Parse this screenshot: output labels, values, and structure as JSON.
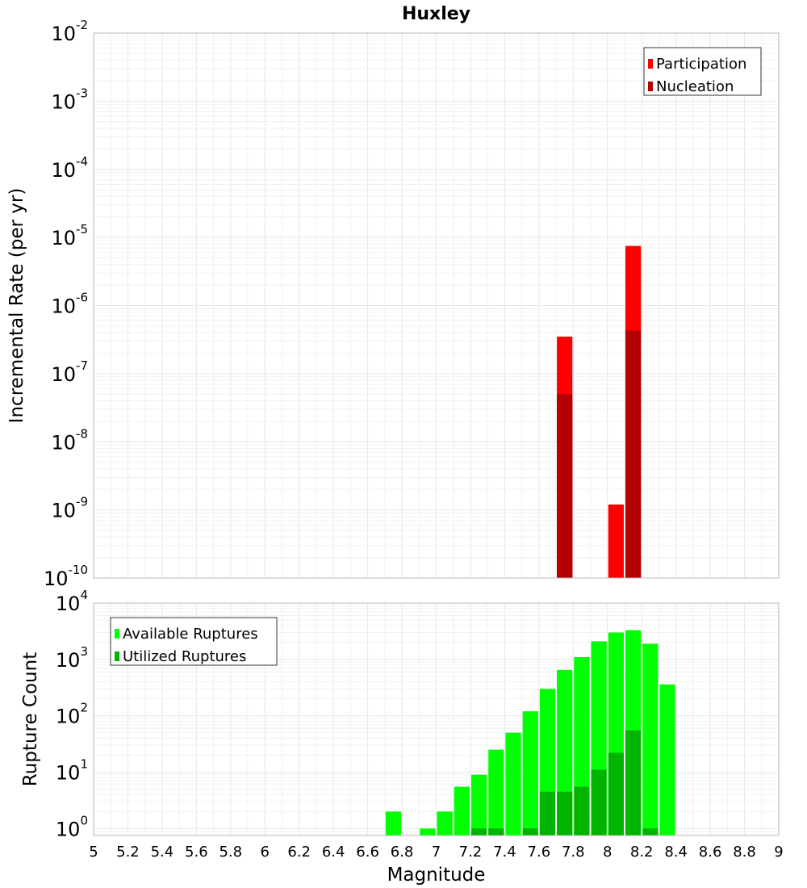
{
  "chart_data": [
    {
      "type": "bar",
      "title": "Huxley",
      "ylabel": "Incremental Rate (per yr)",
      "xlabel": "",
      "yscale": "log",
      "ylim": [
        1e-10,
        0.01
      ],
      "xlim": [
        5,
        9
      ],
      "bin_width": 0.1,
      "yticks": [
        {
          "base": "10",
          "exp": "-10"
        },
        {
          "base": "10",
          "exp": "-9"
        },
        {
          "base": "10",
          "exp": "-8"
        },
        {
          "base": "10",
          "exp": "-7"
        },
        {
          "base": "10",
          "exp": "-6"
        },
        {
          "base": "10",
          "exp": "-5"
        },
        {
          "base": "10",
          "exp": "-4"
        },
        {
          "base": "10",
          "exp": "-3"
        },
        {
          "base": "10",
          "exp": "-2"
        }
      ],
      "legend_position": "top-right",
      "series": [
        {
          "name": "Participation",
          "color": "#ff0000",
          "x": [
            7.75,
            8.05,
            8.15
          ],
          "values": [
            3.5e-07,
            1.2e-09,
            7.5e-06
          ]
        },
        {
          "name": "Nucleation",
          "color": "#b40000",
          "x": [
            7.75,
            8.15
          ],
          "values": [
            5e-08,
            4.3e-07
          ]
        }
      ]
    },
    {
      "type": "bar",
      "title": "",
      "ylabel": "Rupture Count",
      "xlabel": "Magnitude",
      "yscale": "log",
      "ylim": [
        0.75,
        10000
      ],
      "xlim": [
        5,
        9
      ],
      "bin_width": 0.1,
      "xticks": [
        "5",
        "5.2",
        "5.4",
        "5.6",
        "5.8",
        "6",
        "6.2",
        "6.4",
        "6.6",
        "6.8",
        "7",
        "7.2",
        "7.4",
        "7.6",
        "7.8",
        "8",
        "8.2",
        "8.4",
        "8.6",
        "8.8",
        "9"
      ],
      "yticks": [
        {
          "base": "10",
          "exp": "0"
        },
        {
          "base": "10",
          "exp": "1"
        },
        {
          "base": "10",
          "exp": "2"
        },
        {
          "base": "10",
          "exp": "3"
        },
        {
          "base": "10",
          "exp": "4"
        }
      ],
      "legend_position": "top-left",
      "series": [
        {
          "name": "Available Ruptures",
          "color": "#00ff00",
          "x": [
            6.75,
            6.95,
            7.05,
            7.15,
            7.25,
            7.35,
            7.45,
            7.55,
            7.65,
            7.75,
            7.85,
            7.95,
            8.05,
            8.15,
            8.25,
            8.35
          ],
          "values": [
            2,
            1,
            2,
            5.5,
            9,
            25,
            50,
            120,
            300,
            650,
            1100,
            2100,
            3000,
            3300,
            1900,
            360
          ]
        },
        {
          "name": "Utilized Ruptures",
          "color": "#00b400",
          "x": [
            7.25,
            7.35,
            7.55,
            7.65,
            7.75,
            7.85,
            7.95,
            8.05,
            8.15,
            8.25
          ],
          "values": [
            1,
            1,
            1,
            4.5,
            4.5,
            5.5,
            11,
            22,
            55,
            1
          ]
        }
      ]
    }
  ]
}
